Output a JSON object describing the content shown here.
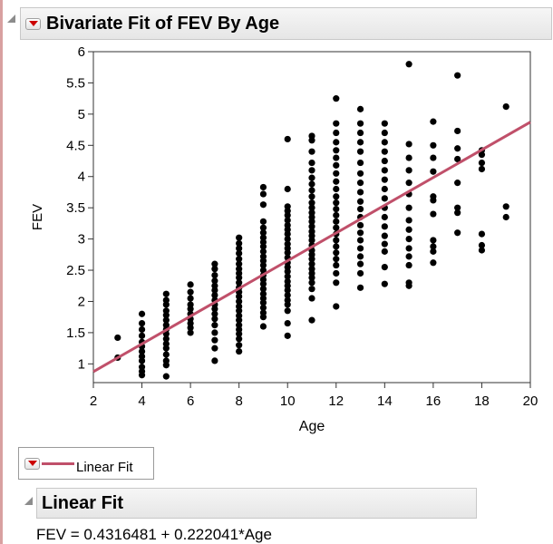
{
  "report": {
    "title": "Bivariate Fit of FEV By Age"
  },
  "legend": {
    "label": "Linear Fit",
    "line_color": "#c0506a"
  },
  "linear_fit": {
    "title": "Linear Fit",
    "equation": "FEV = 0.4316481 + 0.222041*Age"
  },
  "icons": {
    "disclosure": "disclosure-triangle-icon",
    "menu": "red-dropdown-menu-icon"
  },
  "chart_data": {
    "type": "scatter",
    "xlabel": "Age",
    "ylabel": "FEV",
    "xlim": [
      2,
      20
    ],
    "ylim": [
      0.7,
      6
    ],
    "xticks": [
      2,
      4,
      6,
      8,
      10,
      12,
      14,
      16,
      18,
      20
    ],
    "yticks": [
      1,
      1.5,
      2,
      2.5,
      3,
      3.5,
      4,
      4.5,
      5,
      5.5,
      6
    ],
    "point_color": "#000000",
    "fit_line": {
      "intercept": 0.4316481,
      "slope": 0.222041,
      "color": "#c0506a"
    },
    "points": [
      [
        3,
        1.42
      ],
      [
        3,
        1.1
      ],
      [
        4,
        1.8
      ],
      [
        4,
        1.65
      ],
      [
        4,
        1.55
      ],
      [
        4,
        1.45
      ],
      [
        4,
        1.35
      ],
      [
        4,
        1.28
      ],
      [
        4,
        1.2
      ],
      [
        4,
        1.12
      ],
      [
        4,
        1.05
      ],
      [
        4,
        0.95
      ],
      [
        4,
        0.88
      ],
      [
        4,
        0.82
      ],
      [
        5,
        2.12
      ],
      [
        5,
        2.02
      ],
      [
        5,
        1.95
      ],
      [
        5,
        1.85
      ],
      [
        5,
        1.78
      ],
      [
        5,
        1.7
      ],
      [
        5,
        1.62
      ],
      [
        5,
        1.55
      ],
      [
        5,
        1.48
      ],
      [
        5,
        1.4
      ],
      [
        5,
        1.32
      ],
      [
        5,
        1.25
      ],
      [
        5,
        1.15
      ],
      [
        5,
        1.05
      ],
      [
        5,
        0.98
      ],
      [
        5,
        0.8
      ],
      [
        6,
        2.27
      ],
      [
        6,
        2.15
      ],
      [
        6,
        2.05
      ],
      [
        6,
        1.95
      ],
      [
        6,
        1.88
      ],
      [
        6,
        1.8
      ],
      [
        6,
        1.72
      ],
      [
        6,
        1.65
      ],
      [
        6,
        1.58
      ],
      [
        6,
        1.5
      ],
      [
        7,
        2.6
      ],
      [
        7,
        2.52
      ],
      [
        7,
        2.42
      ],
      [
        7,
        2.33
      ],
      [
        7,
        2.25
      ],
      [
        7,
        2.18
      ],
      [
        7,
        2.1
      ],
      [
        7,
        2.02
      ],
      [
        7,
        1.95
      ],
      [
        7,
        1.88
      ],
      [
        7,
        1.8
      ],
      [
        7,
        1.72
      ],
      [
        7,
        1.62
      ],
      [
        7,
        1.5
      ],
      [
        7,
        1.38
      ],
      [
        7,
        1.25
      ],
      [
        7,
        1.05
      ],
      [
        8,
        3.02
      ],
      [
        8,
        2.93
      ],
      [
        8,
        2.85
      ],
      [
        8,
        2.77
      ],
      [
        8,
        2.68
      ],
      [
        8,
        2.6
      ],
      [
        8,
        2.52
      ],
      [
        8,
        2.45
      ],
      [
        8,
        2.38
      ],
      [
        8,
        2.3
      ],
      [
        8,
        2.22
      ],
      [
        8,
        2.15
      ],
      [
        8,
        2.08
      ],
      [
        8,
        2.0
      ],
      [
        8,
        1.92
      ],
      [
        8,
        1.85
      ],
      [
        8,
        1.77
      ],
      [
        8,
        1.7
      ],
      [
        8,
        1.62
      ],
      [
        8,
        1.55
      ],
      [
        8,
        1.48
      ],
      [
        8,
        1.4
      ],
      [
        8,
        1.3
      ],
      [
        8,
        1.2
      ],
      [
        9,
        3.83
      ],
      [
        9,
        3.72
      ],
      [
        9,
        3.55
      ],
      [
        9,
        3.28
      ],
      [
        9,
        3.18
      ],
      [
        9,
        3.1
      ],
      [
        9,
        3.02
      ],
      [
        9,
        2.95
      ],
      [
        9,
        2.88
      ],
      [
        9,
        2.8
      ],
      [
        9,
        2.72
      ],
      [
        9,
        2.65
      ],
      [
        9,
        2.58
      ],
      [
        9,
        2.5
      ],
      [
        9,
        2.42
      ],
      [
        9,
        2.35
      ],
      [
        9,
        2.28
      ],
      [
        9,
        2.2
      ],
      [
        9,
        2.12
      ],
      [
        9,
        2.05
      ],
      [
        9,
        1.98
      ],
      [
        9,
        1.9
      ],
      [
        9,
        1.82
      ],
      [
        9,
        1.75
      ],
      [
        9,
        1.6
      ],
      [
        10,
        4.6
      ],
      [
        10,
        3.8
      ],
      [
        10,
        3.52
      ],
      [
        10,
        3.45
      ],
      [
        10,
        3.38
      ],
      [
        10,
        3.3
      ],
      [
        10,
        3.22
      ],
      [
        10,
        3.15
      ],
      [
        10,
        3.08
      ],
      [
        10,
        3.0
      ],
      [
        10,
        2.92
      ],
      [
        10,
        2.85
      ],
      [
        10,
        2.78
      ],
      [
        10,
        2.7
      ],
      [
        10,
        2.62
      ],
      [
        10,
        2.55
      ],
      [
        10,
        2.48
      ],
      [
        10,
        2.4
      ],
      [
        10,
        2.32
      ],
      [
        10,
        2.25
      ],
      [
        10,
        2.18
      ],
      [
        10,
        2.1
      ],
      [
        10,
        2.02
      ],
      [
        10,
        1.95
      ],
      [
        10,
        1.85
      ],
      [
        10,
        1.65
      ],
      [
        10,
        1.45
      ],
      [
        11,
        4.65
      ],
      [
        11,
        4.58
      ],
      [
        11,
        4.4
      ],
      [
        11,
        4.22
      ],
      [
        11,
        4.1
      ],
      [
        11,
        3.98
      ],
      [
        11,
        3.88
      ],
      [
        11,
        3.78
      ],
      [
        11,
        3.68
      ],
      [
        11,
        3.58
      ],
      [
        11,
        3.5
      ],
      [
        11,
        3.42
      ],
      [
        11,
        3.35
      ],
      [
        11,
        3.28
      ],
      [
        11,
        3.2
      ],
      [
        11,
        3.12
      ],
      [
        11,
        3.05
      ],
      [
        11,
        2.98
      ],
      [
        11,
        2.9
      ],
      [
        11,
        2.82
      ],
      [
        11,
        2.75
      ],
      [
        11,
        2.68
      ],
      [
        11,
        2.6
      ],
      [
        11,
        2.52
      ],
      [
        11,
        2.45
      ],
      [
        11,
        2.38
      ],
      [
        11,
        2.3
      ],
      [
        11,
        2.2
      ],
      [
        11,
        2.05
      ],
      [
        11,
        1.7
      ],
      [
        12,
        5.25
      ],
      [
        12,
        4.85
      ],
      [
        12,
        4.7
      ],
      [
        12,
        4.55
      ],
      [
        12,
        4.42
      ],
      [
        12,
        4.3
      ],
      [
        12,
        4.18
      ],
      [
        12,
        4.05
      ],
      [
        12,
        3.92
      ],
      [
        12,
        3.8
      ],
      [
        12,
        3.68
      ],
      [
        12,
        3.58
      ],
      [
        12,
        3.48
      ],
      [
        12,
        3.38
      ],
      [
        12,
        3.28
      ],
      [
        12,
        3.18
      ],
      [
        12,
        3.08
      ],
      [
        12,
        2.98
      ],
      [
        12,
        2.88
      ],
      [
        12,
        2.78
      ],
      [
        12,
        2.68
      ],
      [
        12,
        2.58
      ],
      [
        12,
        2.45
      ],
      [
        12,
        2.3
      ],
      [
        12,
        1.92
      ],
      [
        13,
        5.08
      ],
      [
        13,
        4.85
      ],
      [
        13,
        4.7
      ],
      [
        13,
        4.55
      ],
      [
        13,
        4.4
      ],
      [
        13,
        4.22
      ],
      [
        13,
        4.05
      ],
      [
        13,
        3.9
      ],
      [
        13,
        3.75
      ],
      [
        13,
        3.6
      ],
      [
        13,
        3.48
      ],
      [
        13,
        3.35
      ],
      [
        13,
        3.22
      ],
      [
        13,
        3.1
      ],
      [
        13,
        2.98
      ],
      [
        13,
        2.85
      ],
      [
        13,
        2.72
      ],
      [
        13,
        2.6
      ],
      [
        13,
        2.45
      ],
      [
        13,
        2.22
      ],
      [
        14,
        4.85
      ],
      [
        14,
        4.7
      ],
      [
        14,
        4.55
      ],
      [
        14,
        4.4
      ],
      [
        14,
        4.25
      ],
      [
        14,
        4.1
      ],
      [
        14,
        3.95
      ],
      [
        14,
        3.8
      ],
      [
        14,
        3.65
      ],
      [
        14,
        3.5
      ],
      [
        14,
        3.35
      ],
      [
        14,
        3.2
      ],
      [
        14,
        3.05
      ],
      [
        14,
        2.92
      ],
      [
        14,
        2.8
      ],
      [
        14,
        2.55
      ],
      [
        14,
        2.28
      ],
      [
        15,
        5.8
      ],
      [
        15,
        4.52
      ],
      [
        15,
        4.3
      ],
      [
        15,
        4.1
      ],
      [
        15,
        3.9
      ],
      [
        15,
        3.72
      ],
      [
        15,
        3.5
      ],
      [
        15,
        3.3
      ],
      [
        15,
        3.15
      ],
      [
        15,
        3.0
      ],
      [
        15,
        2.85
      ],
      [
        15,
        2.72
      ],
      [
        15,
        2.58
      ],
      [
        15,
        2.3
      ],
      [
        15,
        2.25
      ],
      [
        16,
        4.88
      ],
      [
        16,
        4.5
      ],
      [
        16,
        4.3
      ],
      [
        16,
        4.08
      ],
      [
        16,
        3.68
      ],
      [
        16,
        3.62
      ],
      [
        16,
        3.4
      ],
      [
        16,
        2.98
      ],
      [
        16,
        2.88
      ],
      [
        16,
        2.8
      ],
      [
        16,
        2.62
      ],
      [
        17,
        5.62
      ],
      [
        17,
        4.73
      ],
      [
        17,
        4.45
      ],
      [
        17,
        4.28
      ],
      [
        17,
        3.9
      ],
      [
        17,
        3.5
      ],
      [
        17,
        3.42
      ],
      [
        17,
        3.1
      ],
      [
        18,
        4.42
      ],
      [
        18,
        4.35
      ],
      [
        18,
        4.22
      ],
      [
        18,
        4.12
      ],
      [
        18,
        3.08
      ],
      [
        18,
        2.9
      ],
      [
        18,
        2.82
      ],
      [
        19,
        5.12
      ],
      [
        19,
        3.52
      ],
      [
        19,
        3.35
      ]
    ]
  }
}
